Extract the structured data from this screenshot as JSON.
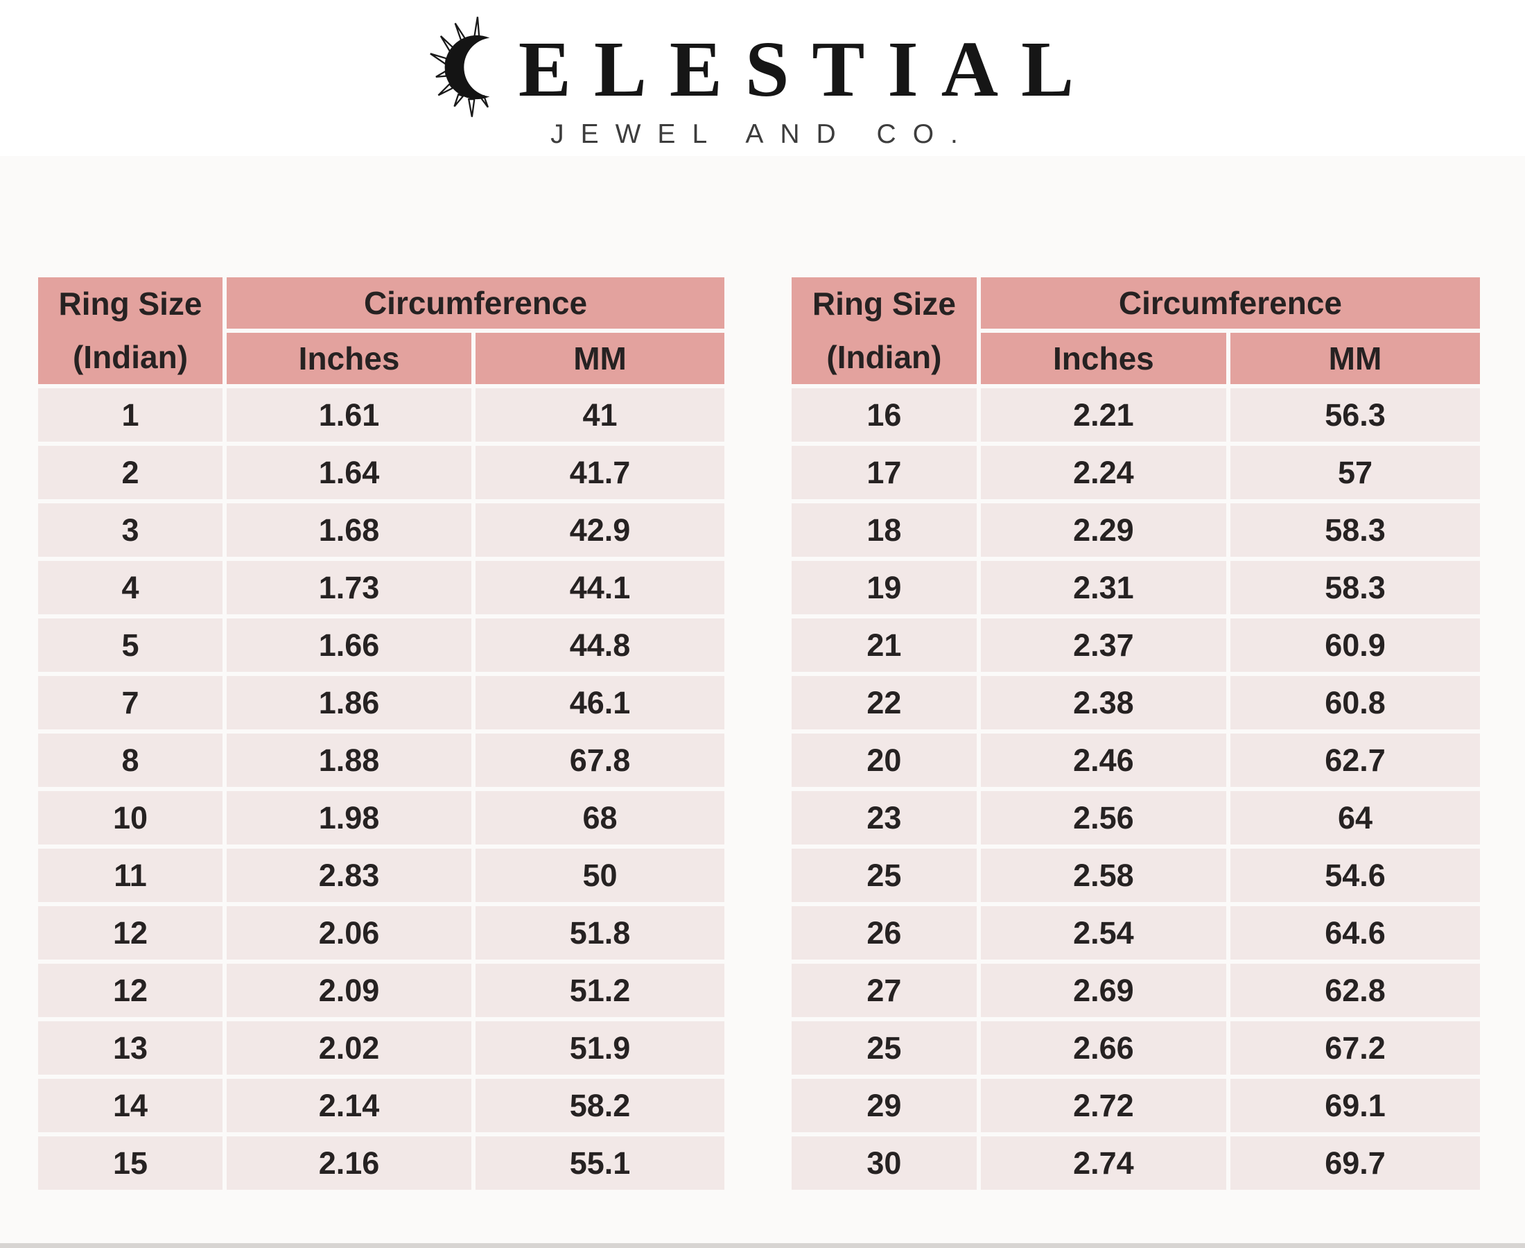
{
  "logo": {
    "icon": "sun-crescent-icon",
    "brand_text": "ELESTIAL",
    "brand_full": "CELESTIAL",
    "subtitle": "JEWEL AND CO."
  },
  "colors": {
    "header_pink": "#e3a29e",
    "row_pink": "#f2e8e7",
    "text_dark": "#262222",
    "background": "#fbfaf9"
  },
  "tables": [
    {
      "headers": {
        "ring_size_line1": "Ring Size",
        "ring_size_line2": "(Indian)",
        "circumference": "Circumference",
        "inches": "Inches",
        "mm": "MM"
      },
      "rows": [
        [
          "1",
          "1.61",
          "41"
        ],
        [
          "2",
          "1.64",
          "41.7"
        ],
        [
          "3",
          "1.68",
          "42.9"
        ],
        [
          "4",
          "1.73",
          "44.1"
        ],
        [
          "5",
          "1.66",
          "44.8"
        ],
        [
          "7",
          "1.86",
          "46.1"
        ],
        [
          "8",
          "1.88",
          "67.8"
        ],
        [
          "10",
          "1.98",
          "68"
        ],
        [
          "11",
          "2.83",
          "50"
        ],
        [
          "12",
          "2.06",
          "51.8"
        ],
        [
          "12",
          "2.09",
          "51.2"
        ],
        [
          "13",
          "2.02",
          "51.9"
        ],
        [
          "14",
          "2.14",
          "58.2"
        ],
        [
          "15",
          "2.16",
          "55.1"
        ]
      ]
    },
    {
      "headers": {
        "ring_size_line1": "Ring Size",
        "ring_size_line2": "(Indian)",
        "circumference": "Circumference",
        "inches": "Inches",
        "mm": "MM"
      },
      "rows": [
        [
          "16",
          "2.21",
          "56.3"
        ],
        [
          "17",
          "2.24",
          "57"
        ],
        [
          "18",
          "2.29",
          "58.3"
        ],
        [
          "19",
          "2.31",
          "58.3"
        ],
        [
          "21",
          "2.37",
          "60.9"
        ],
        [
          "22",
          "2.38",
          "60.8"
        ],
        [
          "20",
          "2.46",
          "62.7"
        ],
        [
          "23",
          "2.56",
          "64"
        ],
        [
          "25",
          "2.58",
          "54.6"
        ],
        [
          "26",
          "2.54",
          "64.6"
        ],
        [
          "27",
          "2.69",
          "62.8"
        ],
        [
          "25",
          "2.66",
          "67.2"
        ],
        [
          "29",
          "2.72",
          "69.1"
        ],
        [
          "30",
          "2.74",
          "69.7"
        ]
      ]
    }
  ],
  "chart_data": [
    {
      "type": "table",
      "title": "Ring Size (Indian) to Circumference — left table",
      "columns": [
        "Ring Size (Indian)",
        "Circumference Inches",
        "Circumference MM"
      ],
      "rows": [
        [
          1,
          1.61,
          41
        ],
        [
          2,
          1.64,
          41.7
        ],
        [
          3,
          1.68,
          42.9
        ],
        [
          4,
          1.73,
          44.1
        ],
        [
          5,
          1.66,
          44.8
        ],
        [
          7,
          1.86,
          46.1
        ],
        [
          8,
          1.88,
          67.8
        ],
        [
          10,
          1.98,
          68
        ],
        [
          11,
          2.83,
          50
        ],
        [
          12,
          2.06,
          51.8
        ],
        [
          12,
          2.09,
          51.2
        ],
        [
          13,
          2.02,
          51.9
        ],
        [
          14,
          2.14,
          58.2
        ],
        [
          15,
          2.16,
          55.1
        ]
      ]
    },
    {
      "type": "table",
      "title": "Ring Size (Indian) to Circumference — right table",
      "columns": [
        "Ring Size (Indian)",
        "Circumference Inches",
        "Circumference MM"
      ],
      "rows": [
        [
          16,
          2.21,
          56.3
        ],
        [
          17,
          2.24,
          57
        ],
        [
          18,
          2.29,
          58.3
        ],
        [
          19,
          2.31,
          58.3
        ],
        [
          21,
          2.37,
          60.9
        ],
        [
          22,
          2.38,
          60.8
        ],
        [
          20,
          2.46,
          62.7
        ],
        [
          23,
          2.56,
          64
        ],
        [
          25,
          2.58,
          54.6
        ],
        [
          26,
          2.54,
          64.6
        ],
        [
          27,
          2.69,
          62.8
        ],
        [
          25,
          2.66,
          67.2
        ],
        [
          29,
          2.72,
          69.1
        ],
        [
          30,
          2.74,
          69.7
        ]
      ]
    }
  ]
}
